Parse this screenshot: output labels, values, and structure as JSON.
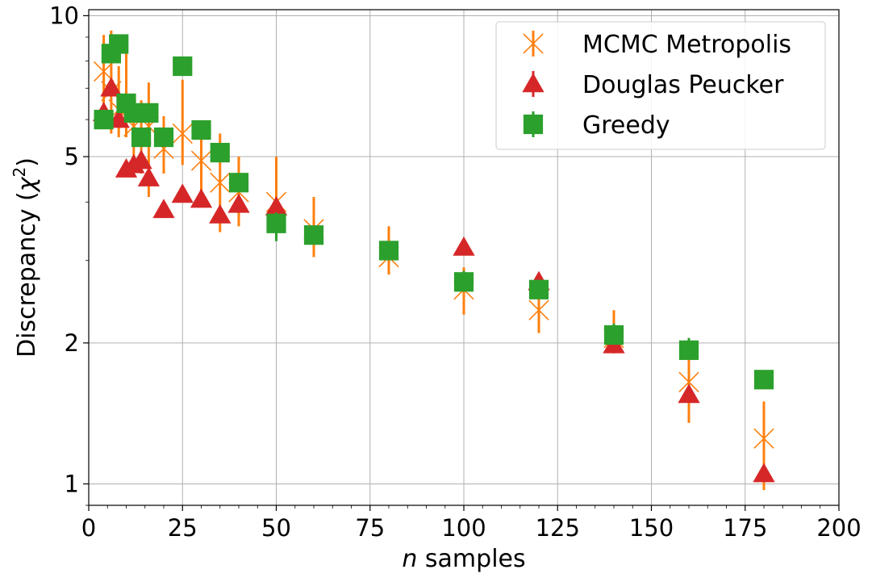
{
  "chart_data": {
    "type": "scatter",
    "xlabel_var": "n",
    "xlabel_rest": " samples",
    "ylabel_main": "Discrepancy (",
    "ylabel_chi": "χ",
    "ylabel_sup": "2",
    "ylabel_end": ")",
    "xlim": [
      0,
      200
    ],
    "ylim": [
      0.9,
      10.3
    ],
    "yscale": "log",
    "grid": true,
    "legend_position": "top-right",
    "x_ticks": [
      0,
      25,
      50,
      75,
      100,
      125,
      150,
      175,
      200
    ],
    "x_tick_labels": [
      "0",
      "25",
      "50",
      "75",
      "100",
      "125",
      "150",
      "175",
      "200"
    ],
    "y_ticks": [
      1,
      2,
      5,
      10
    ],
    "y_tick_labels": [
      "1",
      "2",
      "5",
      "10"
    ],
    "series": [
      {
        "name": "MCMC Metropolis",
        "marker": "x",
        "color": "#ff7f0e",
        "errorbar_color": "#ff7f0e",
        "points": [
          {
            "x": 4,
            "y": 7.6,
            "lo": 6.3,
            "hi": 9.1
          },
          {
            "x": 6,
            "y": 6.9,
            "lo": 5.6,
            "hi": 9.3
          },
          {
            "x": 8,
            "y": 6.3,
            "lo": 5.5,
            "hi": 7.8
          },
          {
            "x": 10,
            "y": 6.3,
            "lo": 5.5,
            "hi": 8.6
          },
          {
            "x": 12,
            "y": 5.8,
            "lo": 4.8,
            "hi": 6.7
          },
          {
            "x": 14,
            "y": 5.6,
            "lo": 4.6,
            "hi": 6.6
          },
          {
            "x": 16,
            "y": 5.8,
            "lo": 4.1,
            "hi": 7.2
          },
          {
            "x": 20,
            "y": 5.2,
            "lo": 4.6,
            "hi": 6.1
          },
          {
            "x": 25,
            "y": 5.6,
            "lo": 4.8,
            "hi": 7.3
          },
          {
            "x": 30,
            "y": 4.9,
            "lo": 4.2,
            "hi": 5.8
          },
          {
            "x": 35,
            "y": 4.4,
            "lo": 3.45,
            "hi": 5.6
          },
          {
            "x": 40,
            "y": 4.2,
            "lo": 3.55,
            "hi": 5.0
          },
          {
            "x": 50,
            "y": 4.0,
            "lo": 3.9,
            "hi": 5.0
          },
          {
            "x": 60,
            "y": 3.5,
            "lo": 3.05,
            "hi": 4.1
          },
          {
            "x": 80,
            "y": 3.05,
            "lo": 2.8,
            "hi": 3.55
          },
          {
            "x": 100,
            "y": 2.6,
            "lo": 2.3,
            "hi": 2.9
          },
          {
            "x": 120,
            "y": 2.35,
            "lo": 2.1,
            "hi": 2.6
          },
          {
            "x": 140,
            "y": 2.05,
            "lo": 1.9,
            "hi": 2.35
          },
          {
            "x": 160,
            "y": 1.65,
            "lo": 1.35,
            "hi": 1.95
          },
          {
            "x": 180,
            "y": 1.25,
            "lo": 0.97,
            "hi": 1.5
          }
        ]
      },
      {
        "name": "Douglas Peucker",
        "marker": "triangle",
        "color": "#d62728",
        "errorbar_color": "#d62728",
        "points": [
          {
            "x": 4,
            "y": 6.2
          },
          {
            "x": 6,
            "y": 7.0
          },
          {
            "x": 8,
            "y": 6.0
          },
          {
            "x": 10,
            "y": 4.7
          },
          {
            "x": 12,
            "y": 4.8
          },
          {
            "x": 14,
            "y": 4.9
          },
          {
            "x": 16,
            "y": 4.5
          },
          {
            "x": 20,
            "y": 3.85
          },
          {
            "x": 25,
            "y": 4.15
          },
          {
            "x": 30,
            "y": 4.05
          },
          {
            "x": 35,
            "y": 3.75
          },
          {
            "x": 40,
            "y": 3.95
          },
          {
            "x": 50,
            "y": 3.9
          },
          {
            "x": 100,
            "y": 3.2
          },
          {
            "x": 120,
            "y": 2.7
          },
          {
            "x": 140,
            "y": 1.98
          },
          {
            "x": 160,
            "y": 1.55
          },
          {
            "x": 180,
            "y": 1.05
          }
        ]
      },
      {
        "name": "Greedy",
        "marker": "square",
        "color": "#2ca02c",
        "errorbar_color": "#2ca02c",
        "points": [
          {
            "x": 4,
            "y": 6.0
          },
          {
            "x": 6,
            "y": 8.3,
            "lo": 8.1,
            "hi": 8.5
          },
          {
            "x": 8,
            "y": 8.7
          },
          {
            "x": 10,
            "y": 6.5
          },
          {
            "x": 12,
            "y": 6.2
          },
          {
            "x": 14,
            "y": 5.5
          },
          {
            "x": 16,
            "y": 6.2
          },
          {
            "x": 20,
            "y": 5.5
          },
          {
            "x": 25,
            "y": 7.8
          },
          {
            "x": 30,
            "y": 5.7
          },
          {
            "x": 35,
            "y": 5.1
          },
          {
            "x": 40,
            "y": 4.4
          },
          {
            "x": 50,
            "y": 3.6,
            "lo": 3.3,
            "hi": 3.8
          },
          {
            "x": 60,
            "y": 3.4,
            "lo": 3.3,
            "hi": 3.5
          },
          {
            "x": 80,
            "y": 3.15
          },
          {
            "x": 100,
            "y": 2.7,
            "lo": 2.6,
            "hi": 2.85
          },
          {
            "x": 120,
            "y": 2.6
          },
          {
            "x": 140,
            "y": 2.08,
            "lo": 2.0,
            "hi": 2.2
          },
          {
            "x": 160,
            "y": 1.93,
            "lo": 1.85,
            "hi": 2.05
          },
          {
            "x": 180,
            "y": 1.67,
            "lo": 1.6,
            "hi": 1.75
          }
        ]
      }
    ]
  }
}
